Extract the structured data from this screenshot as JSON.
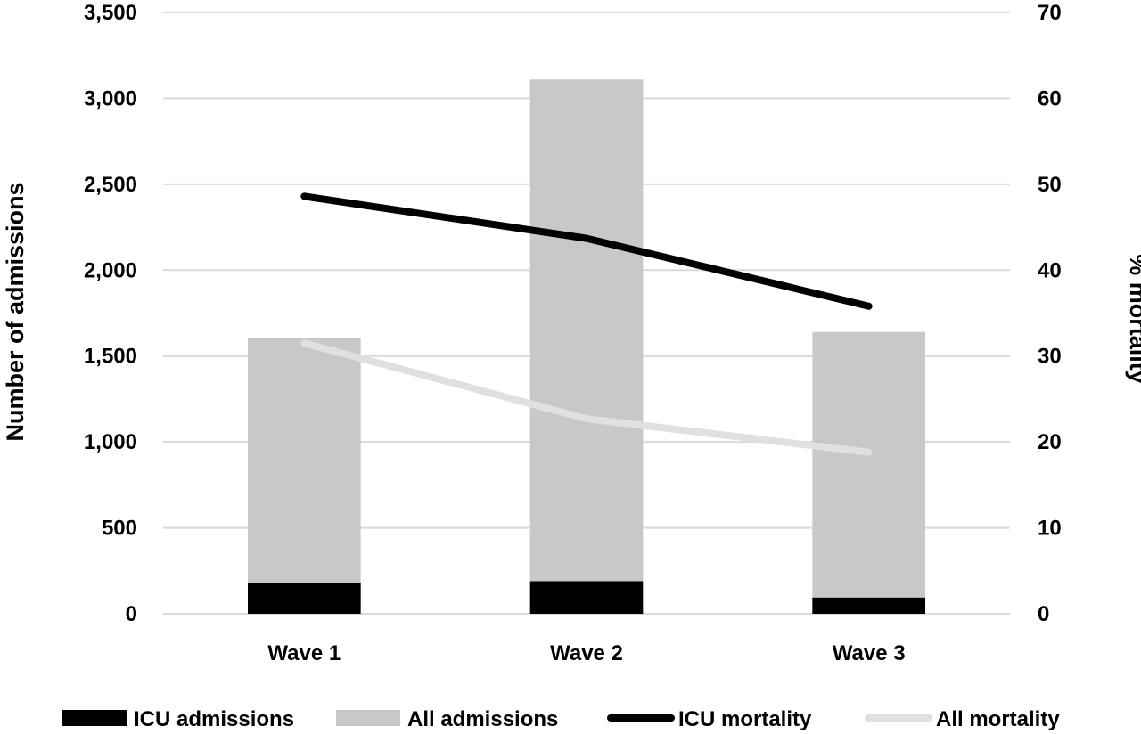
{
  "chart_data": {
    "type": "bar",
    "stacked": true,
    "categories": [
      "Wave 1",
      "Wave 2",
      "Wave 3"
    ],
    "bar_series": [
      {
        "name": "ICU admissions",
        "values": [
          180,
          190,
          95
        ],
        "color": "#000000"
      },
      {
        "name": "All admissions",
        "values": [
          1425,
          2920,
          1545
        ],
        "color": "#c8c8c8"
      }
    ],
    "line_series": [
      {
        "name": "ICU mortality",
        "values": [
          48.6,
          43.7,
          35.8
        ],
        "color": "#000000",
        "axis": "right"
      },
      {
        "name": "All mortality",
        "values": [
          31.5,
          22.7,
          18.8
        ],
        "color": "#e0e0e0",
        "axis": "right"
      }
    ],
    "ylabel": "Number of admissions",
    "y2label": "% mortality",
    "ylim": [
      0,
      3500
    ],
    "y2lim": [
      0,
      70
    ],
    "yticks": [
      0,
      500,
      1000,
      1500,
      2000,
      2500,
      3000,
      3500
    ],
    "yticklabels": [
      "0",
      "500",
      "1,000",
      "1,500",
      "2,000",
      "2,500",
      "3,000",
      "3,500"
    ],
    "y2ticks": [
      0,
      10,
      20,
      30,
      40,
      50,
      60,
      70
    ],
    "y2ticklabels": [
      "0",
      "10",
      "20",
      "30",
      "40",
      "50",
      "60",
      "70"
    ],
    "grid": true,
    "legend_position": "bottom",
    "legend": [
      "ICU admissions",
      "All admissions",
      "ICU mortality",
      "All mortality"
    ]
  }
}
